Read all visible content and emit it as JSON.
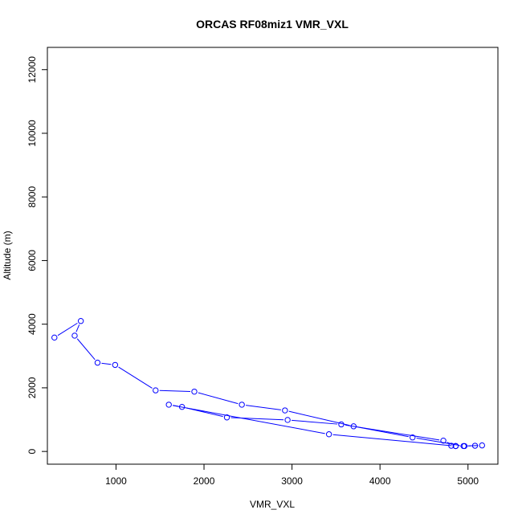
{
  "chart_data": {
    "type": "line",
    "title": "ORCAS RF08miz1 VMR_VXL",
    "xlabel": "VMR_VXL",
    "ylabel": "Altitude (m)",
    "xlim": [
      220,
      5340
    ],
    "ylim": [
      -400,
      12700
    ],
    "xticks": [
      1000,
      2000,
      3000,
      4000,
      5000
    ],
    "yticks": [
      0,
      2000,
      4000,
      6000,
      8000,
      10000,
      12000
    ],
    "colors": {
      "series": "#0000ff",
      "frame": "#000000"
    },
    "markers": "open-circle",
    "grid": false,
    "series": [
      {
        "x": [
          300,
          600,
          530,
          790,
          990,
          1450,
          1890,
          2430,
          2920,
          3700,
          4370,
          4950,
          5160,
          5080,
          4960,
          4860,
          4810,
          4860,
          4720,
          3560,
          2950,
          2260,
          1750,
          1600,
          3420,
          4860
        ],
        "y": [
          3580,
          4100,
          3640,
          2790,
          2720,
          1920,
          1880,
          1470,
          1290,
          790,
          440,
          170,
          190,
          180,
          170,
          170,
          180,
          170,
          340,
          850,
          990,
          1070,
          1400,
          1470,
          540,
          170
        ]
      }
    ]
  }
}
